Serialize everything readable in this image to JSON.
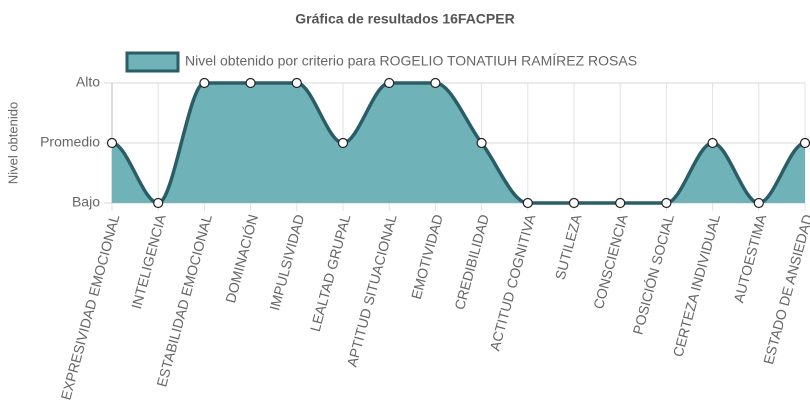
{
  "chart_data": {
    "type": "area",
    "title": "Gráfica de resultados 16FACPER",
    "y_label": "Nivel obtenido",
    "categories": [
      "EXPRESIVIDAD EMOCIONAL",
      "INTELIGENCIA",
      "ESTABILIDAD EMOCIONAL",
      "DOMINACIÓN",
      "IMPULSIVIDAD",
      "LEALTAD GRUPAL",
      "APTITUD SITUACIONAL",
      "EMOTIVIDAD",
      "CREDIBILIDAD",
      "ACTITUD COGNITIVA",
      "SUTILEZA",
      "CONSCIENCIA",
      "POSICIÓN SOCIAL",
      "CERTEZA INDIVIDUAL",
      "AUTOESTIMA",
      "ESTADO DE ANSIEDAD"
    ],
    "series": [
      {
        "name": "Nivel obtenido por criterio para ROGELIO TONATIUH RAMÍREZ ROSAS",
        "color": "#2b5d66",
        "fill": "#6fb3b8",
        "values": [
          2,
          1,
          3,
          3,
          3,
          2,
          3,
          3,
          2,
          1,
          1,
          1,
          1,
          2,
          1,
          2
        ]
      }
    ],
    "ylim": [
      1,
      3
    ],
    "yticks": [
      {
        "value": 1,
        "label": "Bajo"
      },
      {
        "value": 2,
        "label": "Promedio"
      },
      {
        "value": 3,
        "label": "Alto"
      }
    ],
    "grid": true,
    "legend": "top"
  }
}
